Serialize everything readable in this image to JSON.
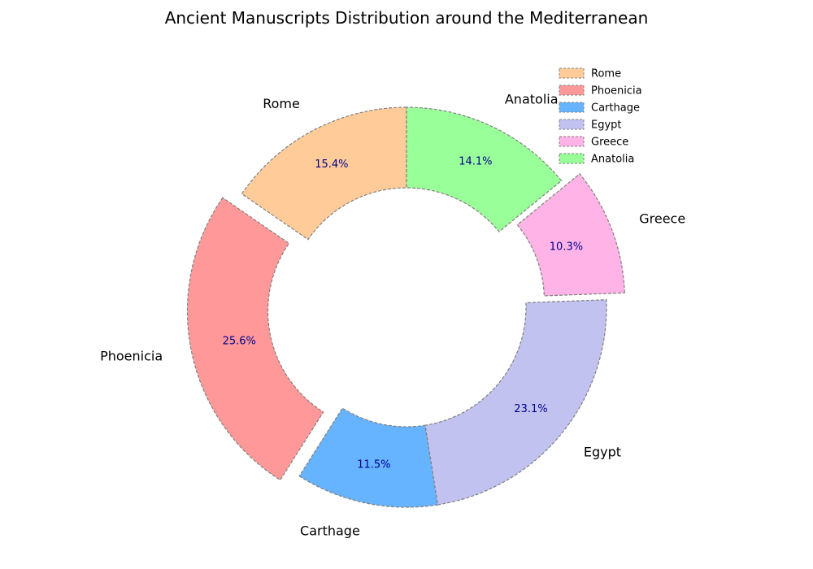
{
  "chart_data": {
    "type": "pie",
    "style": "donut",
    "title": "Ancient Manuscripts Distribution around the Mediterranean",
    "categories": [
      "Rome",
      "Phoenicia",
      "Carthage",
      "Egypt",
      "Greece",
      "Anatolia"
    ],
    "values": [
      15.4,
      25.6,
      11.5,
      23.1,
      10.3,
      14.1
    ],
    "percent_labels": [
      "15.4%",
      "25.6%",
      "11.5%",
      "23.1%",
      "10.3%",
      "14.1%"
    ],
    "exploded": [
      "Phoenicia",
      "Greece"
    ],
    "colors": [
      "#ffcc99",
      "#ff9999",
      "#66b3ff",
      "#c2c2f0",
      "#ffb3e6",
      "#99ff99"
    ],
    "edge_color": "#808080",
    "edge_style": "dashed",
    "percent_label_color": "#00008b",
    "legend": {
      "placement": "top-right",
      "entries": [
        "Rome",
        "Phoenicia",
        "Carthage",
        "Egypt",
        "Greece",
        "Anatolia"
      ]
    }
  }
}
